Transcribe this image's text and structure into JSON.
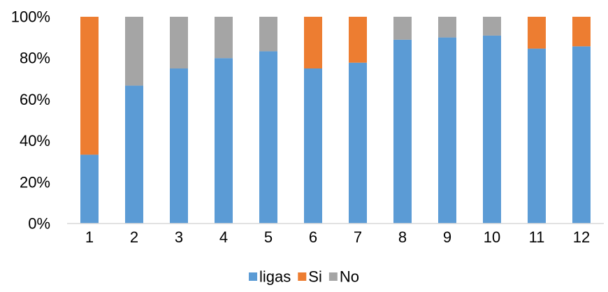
{
  "chart_data": {
    "type": "bar",
    "stacked": true,
    "percent_stacked": true,
    "categories": [
      "1",
      "2",
      "3",
      "4",
      "5",
      "6",
      "7",
      "8",
      "9",
      "10",
      "11",
      "12"
    ],
    "series": [
      {
        "name": "ligas",
        "color": "#5b9bd5",
        "values": [
          33.3,
          66.7,
          75,
          80,
          83.3,
          75,
          77.8,
          88.9,
          90,
          90.9,
          84.6,
          85.7
        ]
      },
      {
        "name": "Si",
        "color": "#ed7d31",
        "values": [
          66.7,
          0,
          0,
          0,
          0,
          25,
          22.2,
          0,
          0,
          0,
          15.4,
          14.3
        ]
      },
      {
        "name": "No",
        "color": "#a5a5a5",
        "values": [
          0,
          33.3,
          25,
          20,
          16.7,
          0,
          0,
          11.1,
          10,
          9.1,
          0,
          0
        ]
      }
    ],
    "y_ticks": [
      "0%",
      "20%",
      "40%",
      "60%",
      "80%",
      "100%"
    ],
    "ylim": [
      0,
      100
    ],
    "grid": false,
    "legend_position": "bottom"
  }
}
